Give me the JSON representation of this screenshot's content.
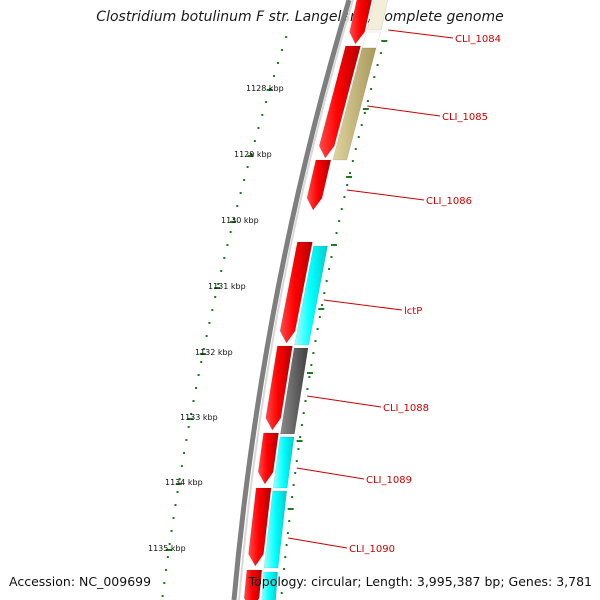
{
  "title": "Clostridium botulinum F str. Langeland, complete genome",
  "footer": {
    "accession": "Accession: NC_009699",
    "summary": "Topology: circular; Length: 3,995,387 bp; Genes: 3,781"
  },
  "scale_labels": [
    "1128 kbp",
    "1129 kbp",
    "1130 kbp",
    "1131 kbp",
    "1132 kbp",
    "1133 kbp",
    "1134 kbp",
    "1135 kbp"
  ],
  "gene_labels": [
    "CLI_1084",
    "CLI_1085",
    "CLI_1086",
    "lctP",
    "CLI_1088",
    "CLI_1089",
    "CLI_1090"
  ],
  "colors": {
    "forward_strand": "#ff0000",
    "backbone": "#7f7f7f",
    "tick": "#1e7a1e",
    "label": "#cc0000",
    "cog_khaki": "#c8b97a",
    "cog_cyan": "#00ffff",
    "cog_gray": "#606060"
  }
}
